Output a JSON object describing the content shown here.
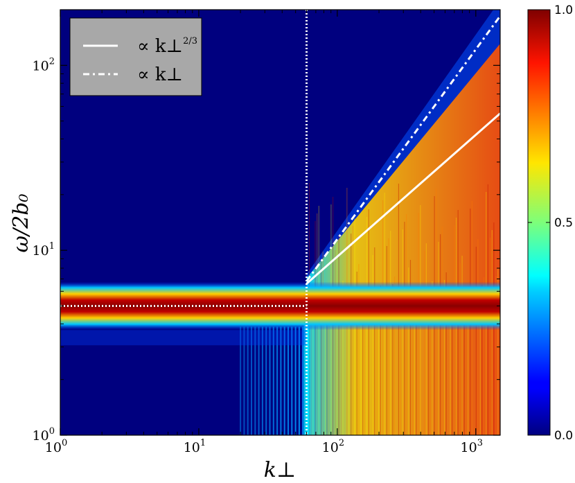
{
  "chart_data": {
    "type": "heatmap",
    "title": "",
    "xlabel": "k⊥",
    "ylabel": "ω/2b₀",
    "x_scale": "log",
    "y_scale": "log",
    "xlim": [
      1,
      1500
    ],
    "ylim": [
      1,
      200
    ],
    "x_ticks": [
      {
        "value": 1,
        "base": "10",
        "exp": "0"
      },
      {
        "value": 10,
        "base": "10",
        "exp": "1"
      },
      {
        "value": 100,
        "base": "10",
        "exp": "2"
      },
      {
        "value": 1000,
        "base": "10",
        "exp": "3"
      }
    ],
    "y_ticks": [
      {
        "value": 1,
        "base": "10",
        "exp": "0"
      },
      {
        "value": 10,
        "base": "10",
        "exp": "1"
      },
      {
        "value": 100,
        "base": "10",
        "exp": "2"
      }
    ],
    "colormap": "jet",
    "colorbar": {
      "range": [
        0.0,
        1.0
      ],
      "ticks": [
        {
          "value": 0.0,
          "label": "0.0"
        },
        {
          "value": 0.5,
          "label": "0.5"
        },
        {
          "value": 1.0,
          "label": "1.0"
        }
      ]
    },
    "band": {
      "y_center": 5.0,
      "x_range": [
        1,
        1500
      ]
    },
    "reference_lines": [
      {
        "style": "solid",
        "color": "#ffffff",
        "label": "∝ k⊥",
        "label_exp": "2/3",
        "slope": 0.6667,
        "points": [
          [
            60,
            6.6
          ],
          [
            1500,
            55
          ]
        ]
      },
      {
        "style": "dashdot",
        "color": "#ffffff",
        "label": "∝ k⊥",
        "label_exp": "",
        "slope": 1.0,
        "points": [
          [
            60,
            6.8
          ],
          [
            1500,
            185
          ]
        ]
      },
      {
        "style": "dotted",
        "orientation": "vertical",
        "color": "#ffffff",
        "x": 60
      },
      {
        "style": "dotted",
        "orientation": "horizontal",
        "color": "#ffffff",
        "y": 5.0,
        "x_range": [
          1,
          60
        ]
      }
    ],
    "legend": {
      "position": "top-left",
      "background": "#a8a8a8"
    }
  }
}
